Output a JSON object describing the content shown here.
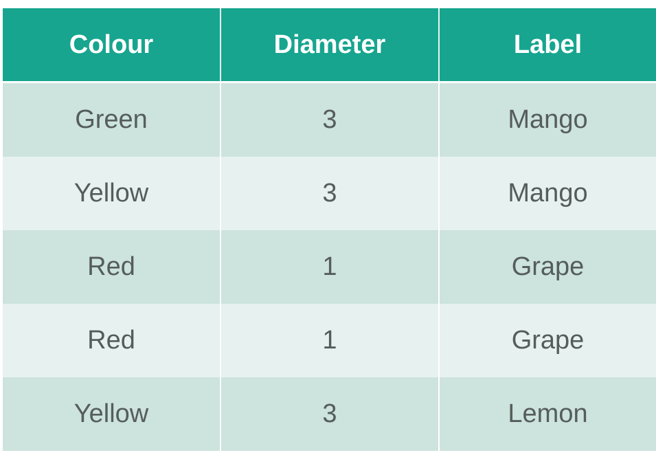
{
  "table": {
    "headers": [
      "Colour",
      "Diameter",
      "Label"
    ],
    "rows": [
      [
        "Green",
        "3",
        "Mango"
      ],
      [
        "Yellow",
        "3",
        "Mango"
      ],
      [
        "Red",
        "1",
        "Grape"
      ],
      [
        "Red",
        "1",
        "Grape"
      ],
      [
        "Yellow",
        "3",
        "Lemon"
      ]
    ]
  },
  "colors": {
    "header_background": "#17a58f",
    "header_text": "#ffffff",
    "row_band_dark": "#cde3dd",
    "row_band_light": "#e7f1ef",
    "cell_text": "#555d5a"
  }
}
